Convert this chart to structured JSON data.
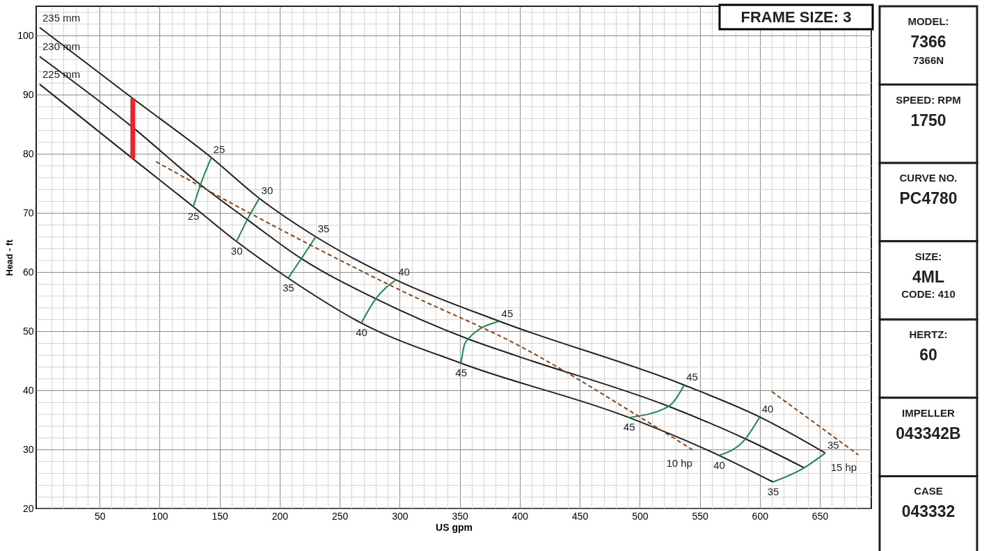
{
  "chart_data": [
    {
      "type": "line",
      "xlabel": "US gpm",
      "ylabel": "Head - ft",
      "xlim": [
        0,
        690
      ],
      "ylim": [
        20,
        105
      ],
      "grid": true,
      "xticks": [
        {
          "value": 10,
          "label": null
        },
        {
          "value": 20,
          "label": null
        },
        {
          "value": 30,
          "label": null
        },
        {
          "value": 40,
          "label": null
        },
        50,
        {
          "value": 60,
          "label": null
        },
        {
          "value": 70,
          "label": null
        },
        {
          "value": 80,
          "label": null
        },
        {
          "value": 90,
          "label": null
        },
        100,
        {
          "value": 110,
          "label": null
        },
        {
          "value": 120,
          "label": null
        },
        {
          "value": 130,
          "label": null
        },
        {
          "value": 140,
          "label": null
        },
        150,
        {
          "value": 160,
          "label": null
        },
        {
          "value": 170,
          "label": null
        },
        {
          "value": 180,
          "label": null
        },
        {
          "value": 190,
          "label": null
        },
        200,
        {
          "value": 210,
          "label": null
        },
        {
          "value": 220,
          "label": null
        },
        {
          "value": 230,
          "label": null
        },
        {
          "value": 240,
          "label": null
        },
        250,
        {
          "value": 260,
          "label": null
        },
        {
          "value": 270,
          "label": null
        },
        {
          "value": 280,
          "label": null
        },
        {
          "value": 290,
          "label": null
        },
        300,
        {
          "value": 310,
          "label": null
        },
        {
          "value": 320,
          "label": null
        },
        {
          "value": 330,
          "label": null
        },
        {
          "value": 340,
          "label": null
        },
        350,
        {
          "value": 360,
          "label": null
        },
        {
          "value": 370,
          "label": null
        },
        {
          "value": 380,
          "label": null
        },
        {
          "value": 390,
          "label": null
        },
        400,
        {
          "value": 410,
          "label": null
        },
        {
          "value": 420,
          "label": null
        },
        {
          "value": 430,
          "label": null
        },
        {
          "value": 440,
          "label": null
        },
        450,
        {
          "value": 460,
          "label": null
        },
        {
          "value": 470,
          "label": null
        },
        {
          "value": 480,
          "label": null
        },
        {
          "value": 490,
          "label": null
        },
        500,
        {
          "value": 510,
          "label": null
        },
        {
          "value": 520,
          "label": null
        },
        {
          "value": 530,
          "label": null
        },
        {
          "value": 540,
          "label": null
        },
        550,
        {
          "value": 560,
          "label": null
        },
        {
          "value": 570,
          "label": null
        },
        {
          "value": 580,
          "label": null
        },
        {
          "value": 590,
          "label": null
        },
        600,
        {
          "value": 610,
          "label": null
        },
        {
          "value": 620,
          "label": null
        },
        {
          "value": 630,
          "label": null
        },
        {
          "value": 640,
          "label": null
        },
        650,
        {
          "value": 660,
          "label": null
        },
        {
          "value": 670,
          "label": null
        },
        {
          "value": 680,
          "label": null
        }
      ],
      "yticks": [
        20,
        {
          "value": 22,
          "label": null
        },
        {
          "value": 24,
          "label": null
        },
        {
          "value": 26,
          "label": null
        },
        {
          "value": 28,
          "label": null
        },
        30,
        {
          "value": 32,
          "label": null
        },
        {
          "value": 34,
          "label": null
        },
        {
          "value": 36,
          "label": null
        },
        {
          "value": 38,
          "label": null
        },
        40,
        {
          "value": 42,
          "label": null
        },
        {
          "value": 44,
          "label": null
        },
        {
          "value": 46,
          "label": null
        },
        {
          "value": 48,
          "label": null
        },
        50,
        {
          "value": 52,
          "label": null
        },
        {
          "value": 54,
          "label": null
        },
        {
          "value": 56,
          "label": null
        },
        {
          "value": 58,
          "label": null
        },
        60,
        {
          "value": 62,
          "label": null
        },
        {
          "value": 64,
          "label": null
        },
        {
          "value": 66,
          "label": null
        },
        {
          "value": 68,
          "label": null
        },
        70,
        {
          "value": 72,
          "label": null
        },
        {
          "value": 74,
          "label": null
        },
        {
          "value": 76,
          "label": null
        },
        {
          "value": 78,
          "label": null
        },
        80,
        {
          "value": 82,
          "label": null
        },
        {
          "value": 84,
          "label": null
        },
        {
          "value": 86,
          "label": null
        },
        {
          "value": 88,
          "label": null
        },
        90,
        {
          "value": 92,
          "label": null
        },
        {
          "value": 94,
          "label": null
        },
        {
          "value": 96,
          "label": null
        },
        {
          "value": 98,
          "label": null
        },
        100,
        {
          "value": 102,
          "label": null
        },
        {
          "value": 104,
          "label": null
        }
      ],
      "series": [
        {
          "type": "line",
          "name": "235 mm",
          "color": "#231f20",
          "line_style": "solid",
          "x": [
            0,
            77.6,
            143,
            183,
            230,
            297,
            383,
            537,
            600,
            654.6
          ],
          "values": [
            101.4,
            89.4,
            79.4,
            72.5,
            66,
            58.7,
            51.7,
            40.9,
            35.5,
            29.4
          ]
        },
        {
          "type": "line",
          "name": "230 mm",
          "color": "#231f20",
          "line_style": "solid",
          "x": [
            0,
            77.6,
            134,
            173,
            218,
            280,
            357,
            398,
            524,
            588,
            637
          ],
          "values": [
            96.5,
            84.5,
            74.8,
            68.9,
            62.3,
            55.5,
            48.7,
            45.8,
            37.3,
            31.8,
            26.9
          ]
        },
        {
          "type": "line",
          "name": "225 mm",
          "color": "#231f20",
          "line_style": "solid",
          "x": [
            0,
            77.6,
            128,
            164,
            207,
            268,
            351,
            491,
            566,
            611
          ],
          "values": [
            91.8,
            79.2,
            71.1,
            65.2,
            59,
            51.4,
            44.6,
            35.4,
            29,
            24.5
          ]
        },
        {
          "type": "line",
          "color": "#1a8a4a",
          "line_style": "solid",
          "x": [
            128,
            134,
            143
          ],
          "values": [
            71.1,
            74.8,
            79.4
          ]
        },
        {
          "type": "line",
          "color": "#1a8a4a",
          "line_style": "solid",
          "x": [
            164,
            173,
            183
          ],
          "values": [
            65.2,
            68.9,
            72.5
          ]
        },
        {
          "type": "line",
          "color": "#1a8a4a",
          "line_style": "solid",
          "x": [
            207,
            218,
            230
          ],
          "values": [
            59,
            62.3,
            66
          ]
        },
        {
          "type": "line",
          "color": "#1a8a4a",
          "line_style": "solid",
          "x": [
            268,
            280,
            297
          ],
          "values": [
            51.4,
            55.5,
            58.7
          ]
        },
        {
          "type": "line",
          "color": "#1a8a4a",
          "line_style": "solid",
          "x": [
            351,
            354,
            357,
            383
          ],
          "values": [
            44.6,
            47.8,
            48.7,
            51.7
          ]
        },
        {
          "type": "line",
          "color": "#1a8a4a",
          "line_style": "solid",
          "x": [
            491,
            524,
            537
          ],
          "values": [
            35.4,
            37.3,
            40.9
          ]
        },
        {
          "type": "line",
          "color": "#1a8a4a",
          "line_style": "solid",
          "x": [
            566,
            588,
            600
          ],
          "values": [
            29,
            31.8,
            35.5
          ]
        },
        {
          "type": "line",
          "color": "#1a8a4a",
          "line_style": "solid",
          "x": [
            611,
            637,
            654.6
          ],
          "values": [
            24.5,
            26.9,
            29.4
          ]
        },
        {
          "type": "line",
          "name": "10 hp",
          "color": "#8b4513",
          "line_style": "dashed",
          "x": [
            97,
            175,
            300,
            400,
            500,
            545
          ],
          "values": [
            78.7,
            70,
            57,
            47.5,
            35.5,
            29.8
          ]
        },
        {
          "type": "line",
          "name": "15 hp",
          "color": "#8b4513",
          "line_style": "dashed",
          "x": [
            610,
            682
          ],
          "values": [
            39.8,
            29.1
          ]
        },
        {
          "type": "bar",
          "color": "#e8262b",
          "x": [
            77.6
          ],
          "base": [
            79.2
          ],
          "values": [
            10.2
          ]
        }
      ],
      "annotations": [
        {
          "text": "25",
          "x": 143,
          "y": 79.4
        },
        {
          "text": "25",
          "x": 128,
          "y": 71.1
        },
        {
          "text": "30",
          "x": 183,
          "y": 72.5
        },
        {
          "text": "30",
          "x": 164,
          "y": 65.2
        },
        {
          "text": "35",
          "x": 230,
          "y": 66
        },
        {
          "text": "35",
          "x": 207,
          "y": 59
        },
        {
          "text": "40",
          "x": 297,
          "y": 58.7
        },
        {
          "text": "40",
          "x": 268,
          "y": 51.4
        },
        {
          "text": "45",
          "x": 383,
          "y": 51.7
        },
        {
          "text": "45",
          "x": 351,
          "y": 44.6
        },
        {
          "text": "45",
          "x": 537,
          "y": 40.9
        },
        {
          "text": "45",
          "x": 491,
          "y": 35.4
        },
        {
          "text": "40",
          "x": 600,
          "y": 35.5
        },
        {
          "text": "40",
          "x": 566,
          "y": 29
        },
        {
          "text": "35",
          "x": 654.6,
          "y": 29.4
        },
        {
          "text": "35",
          "x": 611,
          "y": 24.5
        },
        "FRAME SIZE: 3"
      ]
    },
    {
      "type": "other",
      "annotations": [
        "MODEL:\n7366\n7366N",
        "SPEED: RPM\n1750",
        "CURVE NO.\nPC4780",
        "SIZE:\n4ML\nCODE: 410",
        "HERTZ:\n60",
        "IMPELLER\n043342B",
        "CASE\n043332"
      ]
    }
  ]
}
